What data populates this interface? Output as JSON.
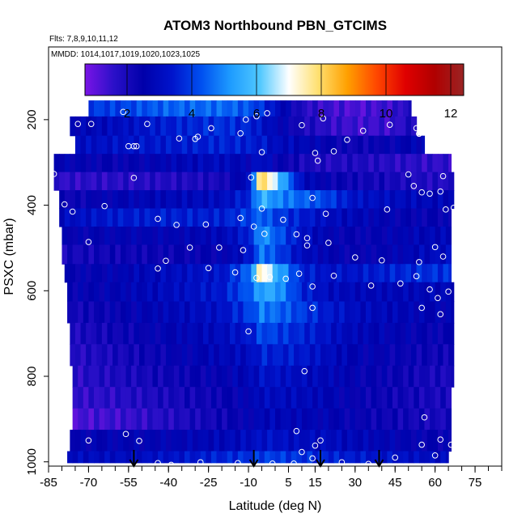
{
  "chart_data": {
    "type": "heatmap",
    "title": "ATOM3 Northbound PBN_GTCIMS",
    "subtitle_flights": "Flts: 7,8,9,10,11,12",
    "subtitle_dates": "MMDD: 1014,1017,1019,1020,1023,1025",
    "xlabel": "Latitude (deg N)",
    "ylabel": "PSXC (mbar)",
    "xlim": [
      -85,
      85
    ],
    "ylim": [
      1010,
      30
    ],
    "x_ticks": [
      -85,
      -70,
      -55,
      -40,
      -25,
      -10,
      5,
      15,
      30,
      45,
      60,
      75
    ],
    "x_tick_labels": [
      "-85",
      "-70",
      "-55",
      "-40",
      "-25",
      "-10",
      "5",
      "15",
      "30",
      "45",
      "60",
      "75"
    ],
    "y_ticks": [
      200,
      400,
      600,
      800,
      1000
    ],
    "y_tick_labels": [
      "200",
      "400",
      "600",
      "800",
      "1000"
    ],
    "colorbar": {
      "min": 0.7,
      "max": 12.4,
      "ticks": [
        2,
        4,
        6,
        8,
        10,
        12
      ],
      "tick_labels": [
        "2",
        "4",
        "6",
        "8",
        "10",
        "12"
      ],
      "colors": [
        "#7a14e6",
        "#2a10c8",
        "#0000aa",
        "#0014cc",
        "#0050f0",
        "#1e9cff",
        "#50c8ff",
        "#ffffff",
        "#ffe070",
        "#ffa000",
        "#ff4800",
        "#e00000",
        "#b00000",
        "#9a2424"
      ]
    },
    "field": {
      "lat_range": [
        -82,
        67
      ],
      "levels": [
        170,
        215,
        260,
        300,
        345,
        385,
        430,
        470,
        515,
        560,
        600,
        650,
        700,
        750,
        800,
        850,
        900,
        950,
        1000
      ],
      "left_edge": [
        -70,
        -77,
        -75,
        -83,
        -83,
        -81,
        -81,
        -80,
        -80,
        -79,
        -78,
        -78,
        -77,
        -77,
        -76,
        -76,
        -76,
        -77,
        -78
      ],
      "right_edge": [
        51,
        53,
        56,
        66,
        67,
        67,
        66,
        66,
        66,
        66,
        67,
        67,
        67,
        67,
        67,
        66,
        66,
        66,
        65
      ],
      "anchors": [
        -80,
        -60,
        -40,
        -20,
        -10,
        -5,
        0,
        10,
        20,
        30,
        45,
        60
      ],
      "values": [
        [
          4.0,
          4.0,
          4.5,
          4.6,
          4.3,
          3.8,
          3.2,
          1.8,
          1.4,
          1.2,
          1.5,
          2.5
        ],
        [
          2.5,
          3.0,
          3.5,
          3.8,
          3.6,
          3.2,
          2.8,
          2.0,
          1.6,
          1.4,
          1.5,
          2.6
        ],
        [
          3.0,
          3.2,
          3.4,
          3.6,
          3.5,
          3.4,
          3.0,
          2.8,
          2.5,
          2.2,
          2.5,
          2.8
        ],
        [
          2.6,
          2.4,
          2.7,
          3.0,
          2.6,
          3.3,
          2.5,
          2.0,
          1.8,
          1.9,
          1.7,
          1.6
        ],
        [
          1.6,
          1.7,
          1.8,
          2.0,
          3.0,
          8.5,
          6.5,
          3.0,
          2.4,
          2.2,
          2.0,
          1.8
        ],
        [
          2.2,
          2.6,
          2.8,
          3.0,
          3.6,
          5.8,
          5.0,
          4.5,
          4.0,
          3.2,
          3.0,
          2.8
        ],
        [
          3.0,
          3.4,
          3.5,
          3.5,
          4.0,
          4.6,
          4.0,
          3.5,
          3.0,
          2.8,
          2.5,
          2.4
        ],
        [
          2.4,
          2.6,
          2.6,
          2.8,
          3.5,
          5.2,
          4.5,
          3.2,
          2.6,
          2.4,
          2.6,
          2.8
        ],
        [
          2.0,
          2.2,
          2.3,
          2.5,
          3.2,
          4.8,
          4.2,
          3.0,
          2.6,
          2.4,
          2.6,
          3.0
        ],
        [
          2.4,
          2.6,
          3.0,
          3.3,
          4.5,
          7.8,
          5.8,
          3.6,
          3.2,
          3.3,
          3.6,
          3.8
        ],
        [
          2.4,
          2.6,
          3.0,
          3.4,
          4.4,
          5.4,
          5.4,
          3.6,
          3.0,
          2.8,
          2.8,
          2.8
        ],
        [
          2.0,
          2.4,
          2.8,
          3.2,
          4.0,
          4.8,
          4.6,
          4.0,
          3.4,
          3.0,
          2.8,
          2.6
        ],
        [
          1.8,
          2.2,
          2.6,
          3.0,
          3.4,
          4.2,
          4.0,
          3.6,
          3.2,
          2.8,
          2.6,
          2.4
        ],
        [
          1.7,
          2.0,
          2.4,
          2.8,
          3.0,
          3.6,
          3.5,
          3.4,
          3.0,
          2.6,
          2.4,
          2.2
        ],
        [
          1.6,
          1.9,
          2.2,
          2.5,
          2.8,
          3.2,
          3.2,
          3.0,
          2.8,
          2.5,
          2.3,
          2.0
        ],
        [
          1.5,
          1.7,
          2.0,
          2.3,
          2.6,
          3.0,
          3.0,
          2.9,
          2.7,
          2.4,
          2.2,
          2.0
        ],
        [
          1.2,
          1.4,
          1.8,
          2.2,
          2.5,
          2.8,
          2.8,
          2.7,
          2.6,
          2.4,
          2.2,
          2.0
        ],
        [
          2.5,
          2.6,
          2.6,
          2.8,
          3.0,
          3.2,
          3.2,
          3.0,
          3.0,
          2.8,
          2.6,
          2.4
        ],
        [
          3.0,
          3.0,
          3.2,
          3.6,
          3.8,
          4.0,
          4.0,
          3.8,
          3.6,
          3.4,
          3.2,
          3.0
        ]
      ]
    },
    "arrows_lat": [
      -53,
      -8,
      17,
      39
    ],
    "sample_points": [
      [
        -74,
        210
      ],
      [
        -69,
        210
      ],
      [
        -57,
        182
      ],
      [
        -48,
        210
      ],
      [
        -29,
        240
      ],
      [
        -24,
        220
      ],
      [
        -13,
        232
      ],
      [
        -11,
        200
      ],
      [
        -7,
        192
      ],
      [
        -3,
        185
      ],
      [
        10,
        213
      ],
      [
        18,
        197
      ],
      [
        33,
        226
      ],
      [
        43,
        212
      ],
      [
        53,
        220
      ],
      [
        54,
        233
      ],
      [
        -55,
        262
      ],
      [
        -53,
        262
      ],
      [
        -52,
        262
      ],
      [
        -36,
        244
      ],
      [
        -30,
        245
      ],
      [
        -5,
        276
      ],
      [
        15,
        278
      ],
      [
        16,
        296
      ],
      [
        22,
        274
      ],
      [
        27,
        247
      ],
      [
        -83,
        327
      ],
      [
        -53,
        336
      ],
      [
        -9,
        335
      ],
      [
        50,
        328
      ],
      [
        52,
        355
      ],
      [
        63,
        332
      ],
      [
        -79,
        398
      ],
      [
        -76,
        415
      ],
      [
        -64,
        402
      ],
      [
        -44,
        432
      ],
      [
        -37,
        446
      ],
      [
        -26,
        445
      ],
      [
        -13,
        430
      ],
      [
        -8,
        450
      ],
      [
        -5,
        408
      ],
      [
        3,
        434
      ],
      [
        14,
        383
      ],
      [
        19,
        420
      ],
      [
        42,
        410
      ],
      [
        55,
        370
      ],
      [
        58,
        373
      ],
      [
        62,
        368
      ],
      [
        64,
        410
      ],
      [
        67,
        406
      ],
      [
        -82,
        497
      ],
      [
        -70,
        486
      ],
      [
        -32,
        499
      ],
      [
        -21,
        499
      ],
      [
        -12,
        505
      ],
      [
        -4,
        467
      ],
      [
        8,
        468
      ],
      [
        12,
        477
      ],
      [
        12,
        494
      ],
      [
        20,
        488
      ],
      [
        30,
        522
      ],
      [
        40,
        529
      ],
      [
        54,
        533
      ],
      [
        60,
        498
      ],
      [
        63,
        520
      ],
      [
        -44,
        548
      ],
      [
        -41,
        530
      ],
      [
        -25,
        547
      ],
      [
        -15,
        557
      ],
      [
        -7,
        570
      ],
      [
        -2,
        568
      ],
      [
        4,
        572
      ],
      [
        9,
        560
      ],
      [
        14,
        590
      ],
      [
        22,
        565
      ],
      [
        36,
        588
      ],
      [
        47,
        583
      ],
      [
        53,
        566
      ],
      [
        58,
        597
      ],
      [
        61,
        617
      ],
      [
        65,
        602
      ],
      [
        -10,
        695
      ],
      [
        14,
        640
      ],
      [
        55,
        640
      ],
      [
        62,
        655
      ],
      [
        11,
        788
      ],
      [
        56,
        896
      ],
      [
        -83,
        955
      ],
      [
        -70,
        950
      ],
      [
        -56,
        935
      ],
      [
        -51,
        951
      ],
      [
        -44,
        1003
      ],
      [
        -39,
        1007
      ],
      [
        -28,
        1001
      ],
      [
        -14,
        1003
      ],
      [
        -1,
        1004
      ],
      [
        7,
        1004
      ],
      [
        10,
        977
      ],
      [
        14,
        992
      ],
      [
        15,
        962
      ],
      [
        25,
        1001
      ],
      [
        35,
        1005
      ],
      [
        45,
        990
      ],
      [
        55,
        960
      ],
      [
        60,
        985
      ],
      [
        62,
        948
      ],
      [
        66,
        960
      ],
      [
        8,
        928
      ],
      [
        17,
        950
      ]
    ]
  }
}
